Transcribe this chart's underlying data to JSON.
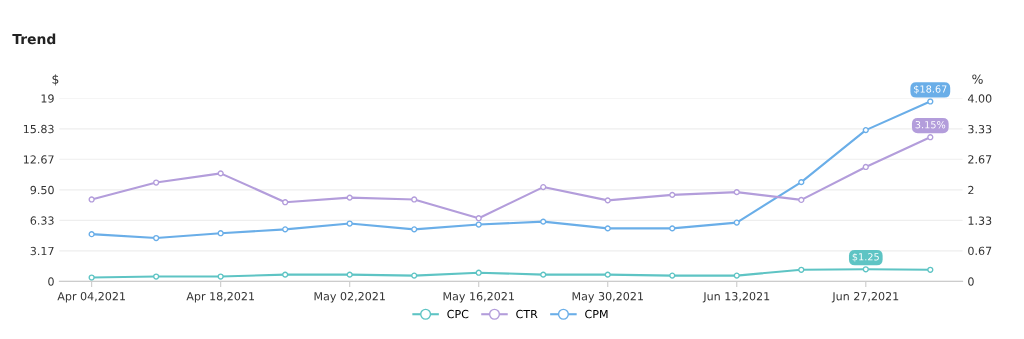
{
  "chart_data": {
    "type": "line",
    "title": "Trend",
    "ylabel": "$",
    "y2label": "%",
    "categories": [
      "Apr 04,2021",
      null,
      "Apr 18,2021",
      null,
      "May 02,2021",
      null,
      "May 16,2021",
      null,
      "May 30,2021",
      null,
      "Jun 13,2021",
      null,
      "Jun 27,2021",
      null
    ],
    "series": [
      {
        "name": "CPC",
        "color": "#5ec4c4",
        "values": [
          0.4,
          0.5,
          0.5,
          0.7,
          0.7,
          0.6,
          0.9,
          0.7,
          0.7,
          0.6,
          0.6,
          1.2,
          1.25,
          1.2
        ],
        "value_labels": [
          null,
          null,
          null,
          null,
          null,
          null,
          null,
          null,
          null,
          null,
          null,
          null,
          "$1.25",
          null
        ]
      },
      {
        "name": "CTR",
        "color": "#b39ddb",
        "axis": "y2",
        "values": [
          1.79,
          2.16,
          2.36,
          1.73,
          1.83,
          1.79,
          1.38,
          2.06,
          1.77,
          1.89,
          1.95,
          1.78,
          2.5,
          3.15
        ],
        "value_labels": [
          null,
          null,
          null,
          null,
          null,
          null,
          null,
          null,
          null,
          null,
          null,
          null,
          null,
          "3.15%"
        ]
      },
      {
        "name": "CPM",
        "color": "#6aaee8",
        "values": [
          4.9,
          4.5,
          5.0,
          5.4,
          6.0,
          5.4,
          5.9,
          6.2,
          5.5,
          5.5,
          6.1,
          10.3,
          15.7,
          18.67
        ],
        "value_labels": [
          null,
          null,
          null,
          null,
          null,
          null,
          null,
          null,
          null,
          null,
          null,
          null,
          null,
          "$18.67"
        ]
      }
    ],
    "ylim": [
      0,
      19
    ],
    "yticks": [
      0,
      {
        "value": 3.17,
        "label": "3.17"
      },
      {
        "value": 6.33,
        "label": "6.33"
      },
      {
        "value": 9.5,
        "label": "9.50"
      },
      {
        "value": 12.67,
        "label": "12.67"
      },
      {
        "value": 15.83,
        "label": "15.83"
      },
      19
    ],
    "y2lim": [
      0,
      4
    ],
    "y2ticks": [
      0,
      0.67,
      1.33,
      2,
      2.67,
      3.33,
      {
        "value": 4,
        "label": "4.00"
      }
    ],
    "grid": "y",
    "legend": "bottom",
    "marker": "circle",
    "line_style": "solid"
  }
}
